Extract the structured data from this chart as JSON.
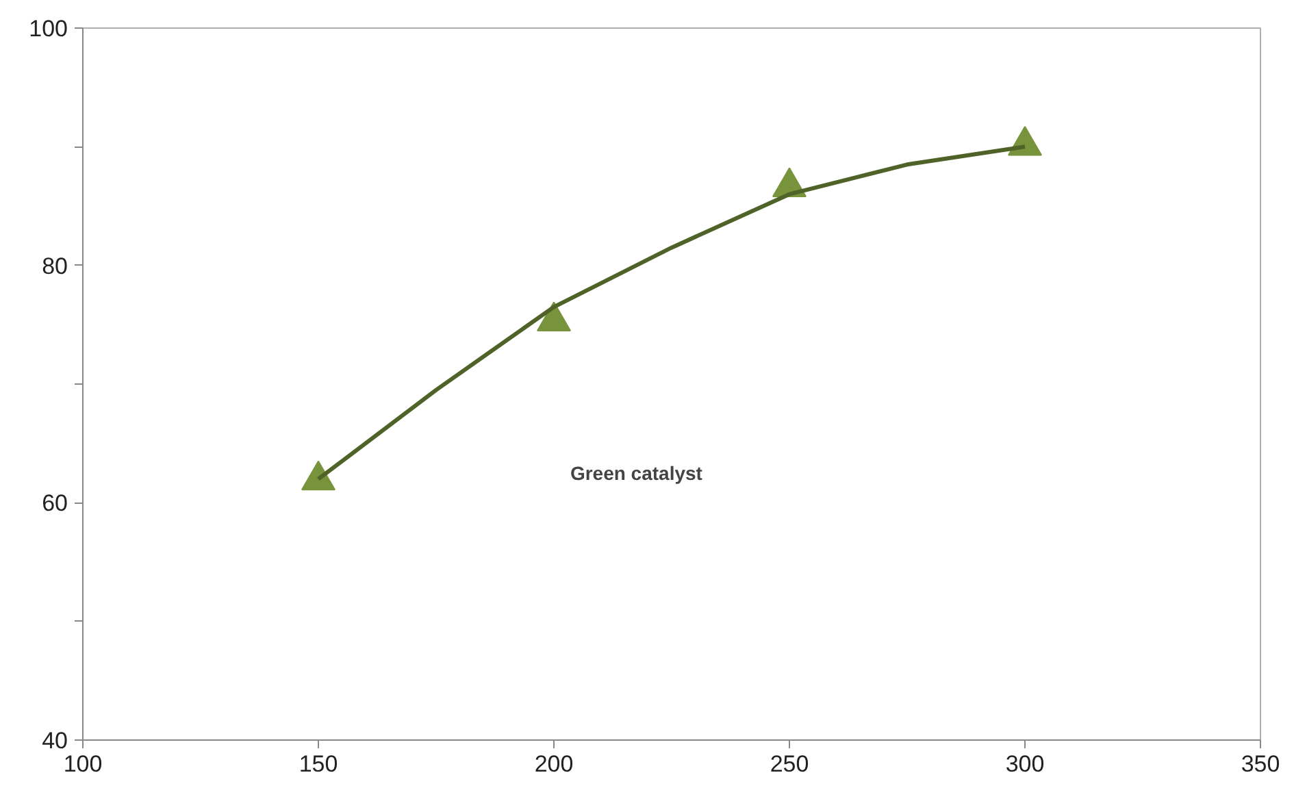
{
  "chart_data": {
    "type": "scatter",
    "x": [
      150,
      200,
      250,
      300
    ],
    "series": [
      {
        "color": "#77933c",
        "marker": "triangle",
        "values": [
          61.9,
          75.3,
          86.6,
          90.1
        ]
      },
      {
        "type": "line",
        "color": "#4f6228",
        "marker": "none",
        "x": [
          150,
          175,
          200,
          225,
          250,
          275,
          300
        ],
        "values": [
          62,
          69.5,
          76.5,
          81.5,
          86,
          88.5,
          90
        ]
      }
    ],
    "xlim": [
      100,
      350
    ],
    "xticks": [
      100,
      150,
      200,
      250,
      300,
      350
    ],
    "ylim": [
      40,
      100
    ],
    "yticks": [
      40,
      {
        "value": 50,
        "label": null
      },
      60,
      {
        "value": 70,
        "label": null
      },
      80,
      {
        "value": 90,
        "label": null
      },
      100
    ],
    "grid": false,
    "annotations": [
      "Green catalyst"
    ]
  }
}
